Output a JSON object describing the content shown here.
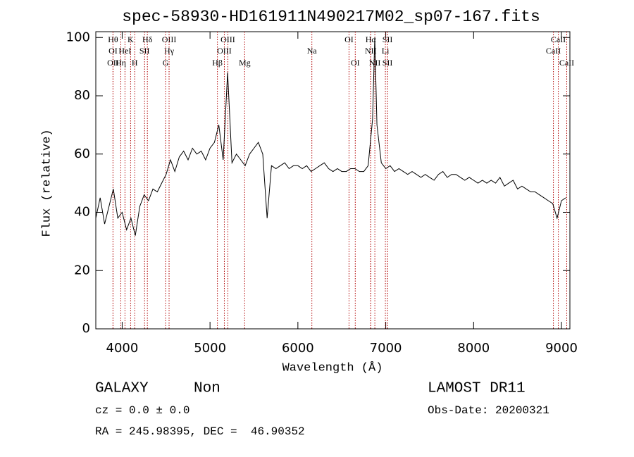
{
  "chart_data": {
    "type": "line",
    "title": "spec-58930-HD161911N490217M02_sp07-167.fits",
    "x_label": "Wavelength (Å)",
    "y_label": "Flux (relative)",
    "color": "#000000",
    "xlim": [
      3700,
      9096
    ],
    "ylim": [
      0,
      102
    ],
    "xticks": [
      4000,
      5000,
      6000,
      7000,
      8000,
      9000
    ],
    "yticks": [
      0,
      20,
      40,
      60,
      80,
      100
    ],
    "x": [
      3700,
      3750,
      3800,
      3850,
      3900,
      3950,
      4000,
      4050,
      4100,
      4150,
      4200,
      4250,
      4300,
      4350,
      4400,
      4450,
      4500,
      4550,
      4600,
      4650,
      4700,
      4750,
      4800,
      4850,
      4900,
      4950,
      5000,
      5050,
      5100,
      5150,
      5200,
      5250,
      5300,
      5350,
      5400,
      5450,
      5500,
      5550,
      5600,
      5650,
      5700,
      5750,
      5800,
      5850,
      5900,
      5950,
      6000,
      6050,
      6100,
      6150,
      6200,
      6250,
      6300,
      6350,
      6400,
      6450,
      6500,
      6550,
      6600,
      6650,
      6700,
      6750,
      6800,
      6850,
      6875,
      6900,
      6950,
      7000,
      7050,
      7100,
      7150,
      7200,
      7250,
      7300,
      7350,
      7400,
      7450,
      7500,
      7550,
      7600,
      7650,
      7700,
      7750,
      7800,
      7850,
      7900,
      7950,
      8000,
      8050,
      8100,
      8150,
      8200,
      8250,
      8300,
      8350,
      8400,
      8450,
      8500,
      8550,
      8600,
      8650,
      8700,
      8750,
      8800,
      8850,
      8900,
      8950,
      9000,
      9050
    ],
    "values": [
      38,
      45,
      36,
      42,
      48,
      38,
      40,
      34,
      38,
      32,
      42,
      46,
      44,
      48,
      47,
      50,
      53,
      58,
      54,
      59,
      61,
      58,
      62,
      60,
      61,
      58,
      62,
      64,
      70,
      58,
      88,
      57,
      60,
      58,
      56,
      60,
      62,
      64,
      60,
      38,
      56,
      55,
      56,
      57,
      55,
      56,
      56,
      55,
      56,
      54,
      55,
      56,
      57,
      55,
      54,
      55,
      54,
      54,
      55,
      55,
      54,
      54,
      56,
      72,
      100,
      70,
      57,
      55,
      56,
      54,
      55,
      54,
      53,
      54,
      53,
      52,
      53,
      52,
      51,
      53,
      54,
      52,
      53,
      53,
      52,
      51,
      52,
      51,
      50,
      51,
      50,
      51,
      50,
      52,
      49,
      50,
      51,
      48,
      49,
      48,
      47,
      47,
      46,
      45,
      44,
      43,
      38,
      44,
      45
    ],
    "spectral_lines": [
      [
        {
          "label": "Hθ",
          "x": 3896
        },
        {
          "label": "K",
          "x": 4096
        },
        {
          "label": "Hδ",
          "x": 4287
        },
        {
          "label": "OIII",
          "x": 4534
        },
        {
          "label": "OIII",
          "x": 5203
        },
        {
          "label": "OI",
          "x": 6582
        },
        {
          "label": "Hα",
          "x": 6829
        },
        {
          "label": "SII",
          "x": 7020
        },
        {
          "label": "CaII",
          "x": 8964
        }
      ],
      [
        {
          "label": "OI",
          "x": 3896
        },
        {
          "label": "HeI",
          "x": 4032
        },
        {
          "label": "SII",
          "x": 4255
        },
        {
          "label": "Hγ",
          "x": 4534
        },
        {
          "label": "OIII",
          "x": 5163
        },
        {
          "label": "Na",
          "x": 6159
        },
        {
          "label": "NII",
          "x": 6829
        },
        {
          "label": "Li",
          "x": 6996
        },
        {
          "label": "CaII",
          "x": 8908
        }
      ],
      [
        {
          "label": "OII",
          "x": 3896
        },
        {
          "label": "Hη",
          "x": 3984
        },
        {
          "label": "H",
          "x": 4143
        },
        {
          "label": "G",
          "x": 4494
        },
        {
          "label": "Hβ",
          "x": 5084
        },
        {
          "label": "Mg",
          "x": 5394
        },
        {
          "label": "OI",
          "x": 6653
        },
        {
          "label": "NII",
          "x": 6876
        },
        {
          "label": "SII",
          "x": 7020
        },
        {
          "label": "CaII",
          "x": 9060
        }
      ]
    ]
  },
  "info": {
    "class": "GALAXY",
    "subclass": "Non",
    "survey": "LAMOST DR11",
    "cz": "cz = 0.0 ± 0.0",
    "obs_date": "Obs-Date: 20200321",
    "coords": "RA = 245.98395, DEC =  46.90352"
  }
}
